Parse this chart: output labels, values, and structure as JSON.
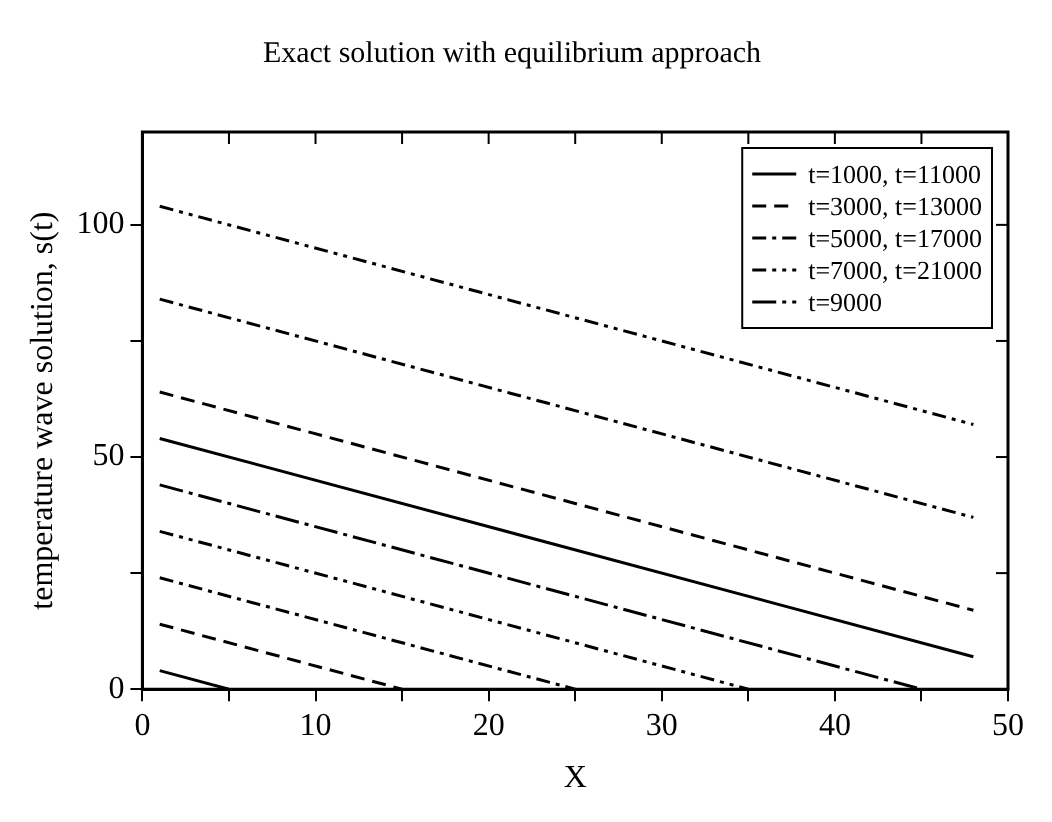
{
  "chart_data": {
    "type": "line",
    "title": "Exact solution with equilibrium approach",
    "xlabel": "X",
    "ylabel": "temperature wave solution, s(t)",
    "xlim": [
      0,
      50
    ],
    "xticks": [
      0,
      {
        "value": 5,
        "label": null
      },
      10,
      {
        "value": 15,
        "label": null
      },
      20,
      {
        "value": 25,
        "label": null
      },
      30,
      {
        "value": 35,
        "label": null
      },
      40,
      {
        "value": 45,
        "label": null
      },
      50
    ],
    "ylim": [
      0,
      120
    ],
    "yticks": [
      0,
      {
        "value": 25,
        "label": null
      },
      50,
      {
        "value": 75,
        "label": null
      },
      100
    ],
    "grid": false,
    "legend": "top right",
    "marker": "none",
    "series": [
      {
        "name": "t=1000, t=11000",
        "color": "#000000",
        "line_style": "solid",
        "x": [
          1,
          5
        ],
        "values": [
          4,
          0
        ]
      },
      {
        "name": "t=3000, t=13000",
        "color": "#000000",
        "line_style": "dashed",
        "x": [
          1,
          15
        ],
        "values": [
          14,
          0
        ]
      },
      {
        "name": "t=5000, t=17000",
        "color": "#000000",
        "line_style": "dashdot",
        "x": [
          1,
          25
        ],
        "values": [
          24,
          0
        ]
      },
      {
        "name": "t=7000, t=21000",
        "color": "#000000",
        "line_style": "dashdotdot",
        "x": [
          1,
          35
        ],
        "values": [
          34,
          0
        ]
      },
      {
        "name": "t=9000",
        "color": "#000000",
        "line_style": "longdashdot",
        "x": [
          1,
          45
        ],
        "values": [
          44,
          0
        ]
      },
      {
        "color": "#000000",
        "line_style": "solid",
        "x": [
          1,
          48
        ],
        "values": [
          54,
          7
        ]
      },
      {
        "color": "#000000",
        "line_style": "dashed",
        "x": [
          1,
          48
        ],
        "values": [
          64,
          17
        ]
      },
      {
        "color": "#000000",
        "line_style": "dashdot",
        "x": [
          1,
          48
        ],
        "values": [
          84,
          37
        ]
      },
      {
        "color": "#000000",
        "line_style": "dashdotdot",
        "x": [
          1,
          48
        ],
        "values": [
          104,
          57
        ]
      }
    ]
  }
}
